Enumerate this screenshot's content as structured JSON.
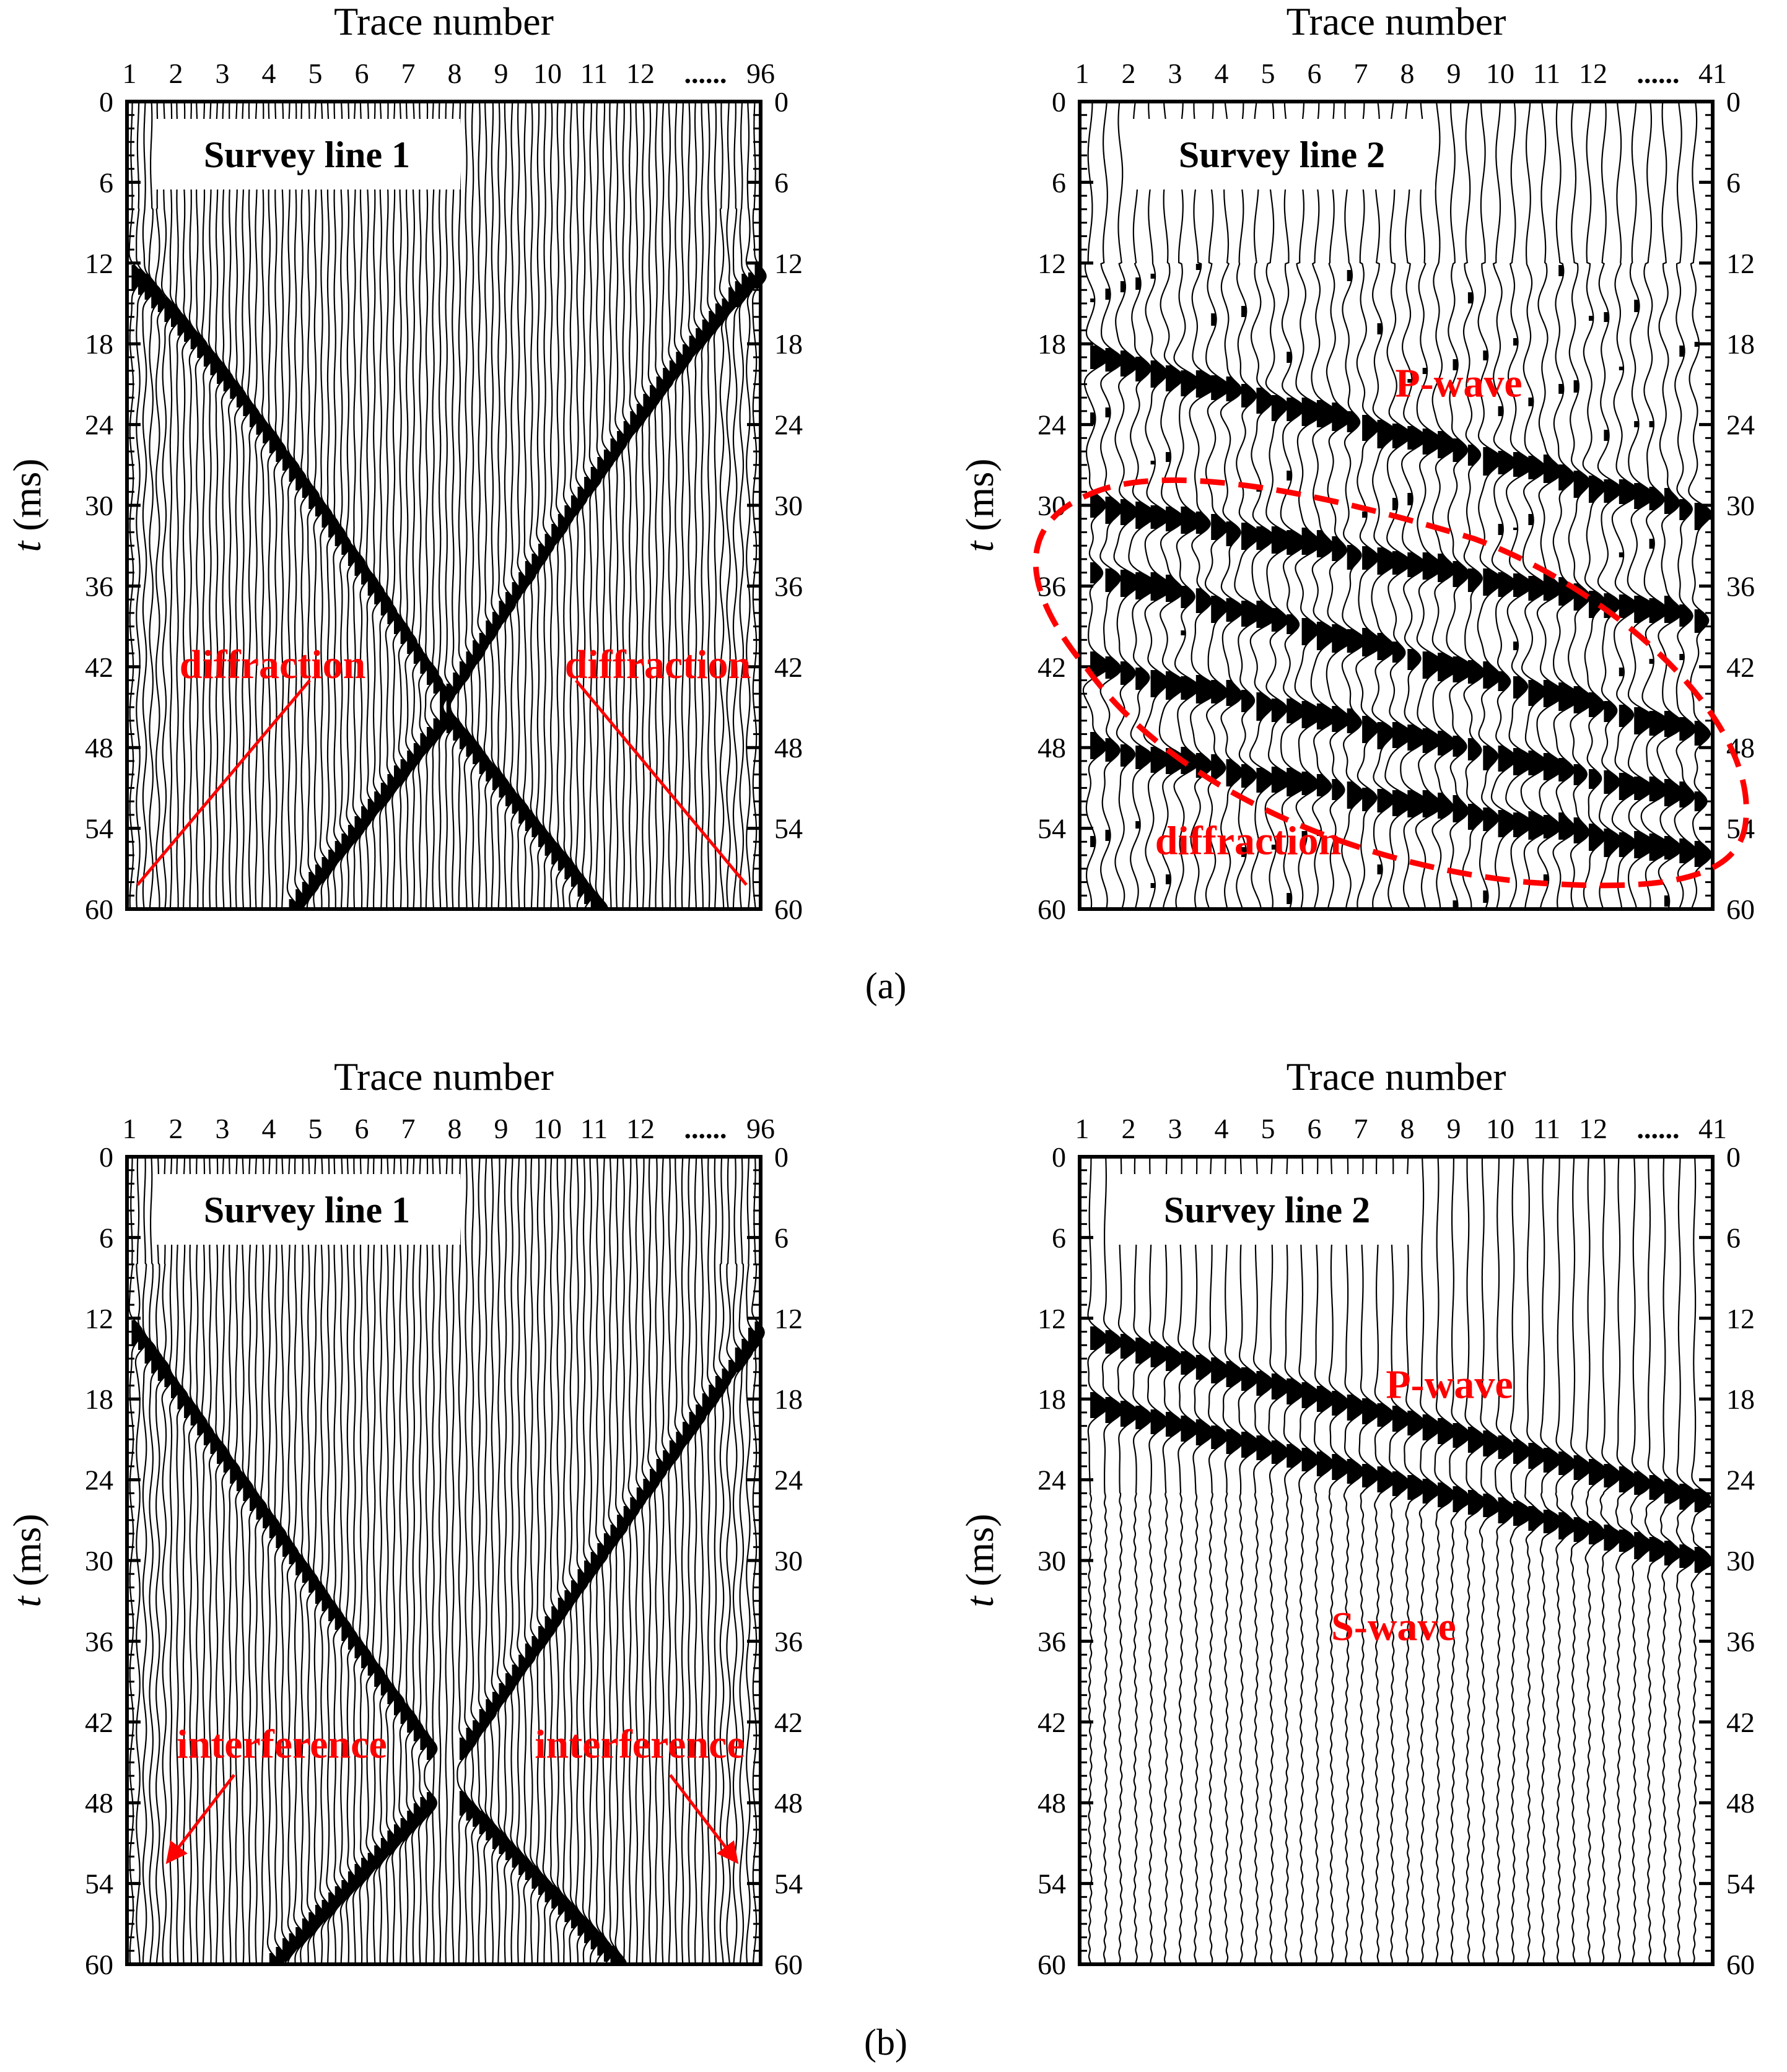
{
  "figure": {
    "caption_a": "(a)",
    "caption_b": "(b)"
  },
  "colors": {
    "annotation": "#ff0000",
    "trace": "#000000",
    "background": "#ffffff"
  },
  "chart_data": [
    {
      "id": "a1",
      "type": "seismic-wiggle",
      "title": "Survey line 1",
      "xlabel": "Trace number",
      "ylabel_italic": "t",
      "ylabel_unit": " (ms)",
      "x_tick_labels": [
        "1",
        "2",
        "3",
        "4",
        "5",
        "6",
        "7",
        "8",
        "9",
        "10",
        "11",
        "12",
        "......",
        "96"
      ],
      "y_ticks": [
        0,
        6,
        12,
        18,
        24,
        30,
        36,
        42,
        48,
        54,
        60
      ],
      "ylim": [
        0,
        60
      ],
      "n_traces": 96,
      "events": [
        {
          "name": "direct-left",
          "from_trace": 1,
          "to_trace": 48,
          "t_start": 13,
          "t_end": 44,
          "shape": "hyperbolic"
        },
        {
          "name": "direct-right",
          "from_trace": 96,
          "to_trace": 49,
          "t_start": 13,
          "t_end": 44,
          "shape": "hyperbolic"
        },
        {
          "name": "lower-left",
          "from_trace": 48,
          "to_trace": 25,
          "t_start": 46,
          "t_end": 60,
          "shape": "linear"
        },
        {
          "name": "lower-right",
          "from_trace": 49,
          "to_trace": 72,
          "t_start": 46,
          "t_end": 60,
          "shape": "linear"
        }
      ],
      "annotations": [
        {
          "text": "diffraction",
          "t": 42,
          "near_trace": 12
        },
        {
          "text": "diffraction",
          "t": 42,
          "near_trace": 84
        }
      ]
    },
    {
      "id": "a2",
      "type": "seismic-wiggle",
      "title": "Survey line 2",
      "xlabel": "Trace number",
      "ylabel_italic": "t",
      "ylabel_unit": " (ms)",
      "x_tick_labels": [
        "1",
        "2",
        "3",
        "4",
        "5",
        "6",
        "7",
        "8",
        "9",
        "10",
        "11",
        "12",
        "......",
        "41"
      ],
      "y_ticks": [
        0,
        6,
        12,
        18,
        24,
        30,
        36,
        42,
        48,
        54,
        60
      ],
      "ylim": [
        0,
        60
      ],
      "n_traces": 41,
      "events": [
        {
          "name": "P-wave",
          "t_start": 19,
          "t_end": 30.5
        },
        {
          "name": "diffraction-1",
          "t_start": 30,
          "t_end": 38.5
        },
        {
          "name": "diffraction-2",
          "t_start": 35,
          "t_end": 47
        },
        {
          "name": "diffraction-3",
          "t_start": 42,
          "t_end": 52
        },
        {
          "name": "diffraction-4",
          "t_start": 48,
          "t_end": 56
        }
      ],
      "annotations": [
        {
          "text": "P-wave",
          "t": 21
        },
        {
          "text": "diffraction",
          "t": 55
        }
      ]
    },
    {
      "id": "b1",
      "type": "seismic-wiggle",
      "title": "Survey line 1",
      "xlabel": "Trace number",
      "ylabel_italic": "t",
      "ylabel_unit": " (ms)",
      "x_tick_labels": [
        "1",
        "2",
        "3",
        "4",
        "5",
        "6",
        "7",
        "8",
        "9",
        "10",
        "11",
        "12",
        "......",
        "96"
      ],
      "y_ticks": [
        0,
        6,
        12,
        18,
        24,
        30,
        36,
        42,
        48,
        54,
        60
      ],
      "ylim": [
        0,
        60
      ],
      "n_traces": 96,
      "events": [
        {
          "name": "direct-left",
          "from_trace": 1,
          "to_trace": 46,
          "t_start": 13,
          "t_end": 44,
          "shape": "linear"
        },
        {
          "name": "direct-right",
          "from_trace": 96,
          "to_trace": 51,
          "t_start": 13,
          "t_end": 44,
          "shape": "linear"
        },
        {
          "name": "lower-left",
          "from_trace": 46,
          "to_trace": 22,
          "t_start": 48,
          "t_end": 60,
          "shape": "linear"
        },
        {
          "name": "lower-right",
          "from_trace": 51,
          "to_trace": 75,
          "t_start": 48,
          "t_end": 60,
          "shape": "linear"
        }
      ],
      "annotations": [
        {
          "text": "interference",
          "t": 44,
          "near_trace": 10
        },
        {
          "text": "interference",
          "t": 44,
          "near_trace": 86
        }
      ]
    },
    {
      "id": "b2",
      "type": "seismic-wiggle",
      "title": "Survey line 2",
      "xlabel": "Trace number",
      "ylabel_italic": "t",
      "ylabel_unit": " (ms)",
      "x_tick_labels": [
        "1",
        "2",
        "3",
        "4",
        "5",
        "6",
        "7",
        "8",
        "9",
        "10",
        "11",
        "12",
        "......",
        "41"
      ],
      "y_ticks": [
        0,
        6,
        12,
        18,
        24,
        30,
        36,
        42,
        48,
        54,
        60
      ],
      "ylim": [
        0,
        60
      ],
      "n_traces": 41,
      "events": [
        {
          "name": "P-wave-1",
          "t_start": 13.5,
          "t_end": 25.5
        },
        {
          "name": "P-wave-2",
          "t_start": 18.5,
          "t_end": 30
        }
      ],
      "annotations": [
        {
          "text": "P-wave",
          "t": 17
        },
        {
          "text": "S-wave",
          "t": 35
        }
      ]
    }
  ]
}
